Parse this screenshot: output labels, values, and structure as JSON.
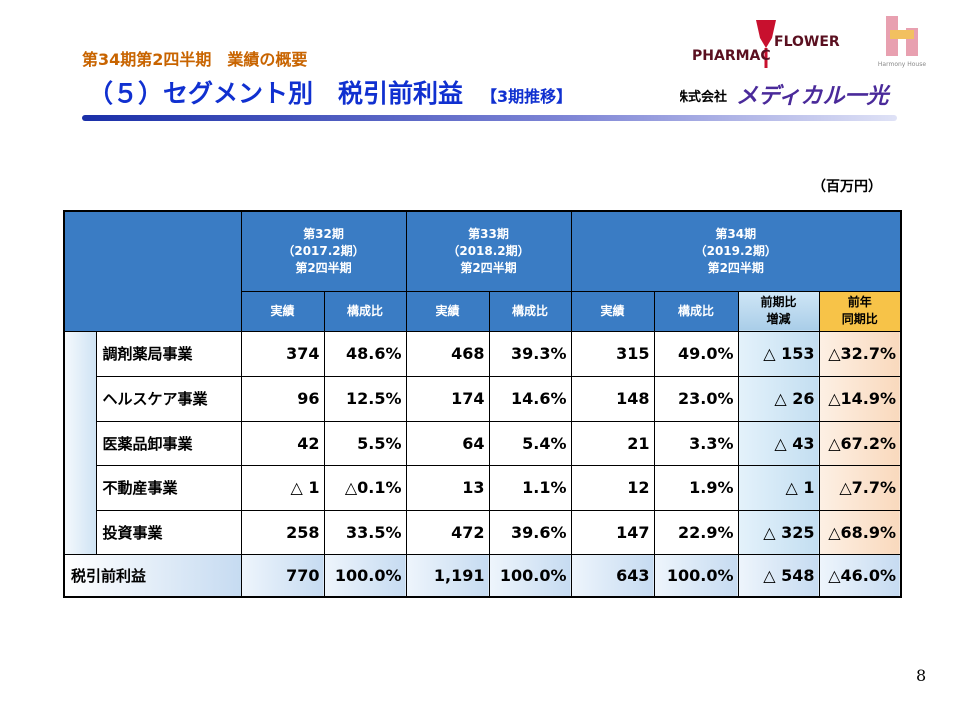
{
  "header": {
    "subtitle": "第34期第2四半期　業績の概要",
    "title": "（５）セグメント別　税引前利益",
    "title_note": "【3期推移】",
    "company_prefix": "株式会社",
    "company_name": "メディカル一光",
    "logo_left": "PHARMAC",
    "logo_right": "FLOWER",
    "logo_house": "Harmony House"
  },
  "unit": "（百万円）",
  "table": {
    "periods": [
      {
        "lines": [
          "第32期",
          "（2017.2期）",
          "第2四半期"
        ],
        "columns": [
          "実績",
          "構成比"
        ]
      },
      {
        "lines": [
          "第33期",
          "（2018.2期）",
          "第2四半期"
        ],
        "columns": [
          "実績",
          "構成比"
        ]
      },
      {
        "lines": [
          "第34期",
          "（2019.2期）",
          "第2四半期"
        ],
        "columns": [
          "実績",
          "構成比",
          [
            "前期比",
            "増減"
          ],
          [
            "前年",
            "同期比"
          ]
        ]
      }
    ],
    "rows": [
      {
        "label": "調剤薬局事業",
        "cells": [
          "374",
          "48.6%",
          "468",
          "39.3%",
          "315",
          "49.0%",
          "△ 153",
          "△32.7%"
        ]
      },
      {
        "label": "ヘルスケア事業",
        "cells": [
          "96",
          "12.5%",
          "174",
          "14.6%",
          "148",
          "23.0%",
          "△ 26",
          "△14.9%"
        ]
      },
      {
        "label": "医薬品卸事業",
        "cells": [
          "42",
          "5.5%",
          "64",
          "5.4%",
          "21",
          "3.3%",
          "△ 43",
          "△67.2%"
        ]
      },
      {
        "label": "不動産事業",
        "cells": [
          "△ 1",
          "△0.1%",
          "13",
          "1.1%",
          "12",
          "1.9%",
          "△ 1",
          "△7.7%"
        ]
      },
      {
        "label": "投資事業",
        "cells": [
          "258",
          "33.5%",
          "472",
          "39.6%",
          "147",
          "22.9%",
          "△ 325",
          "△68.9%"
        ]
      }
    ],
    "total": {
      "label": "税引前利益",
      "cells": [
        "770",
        "100.0%",
        "1,191",
        "100.0%",
        "643",
        "100.0%",
        "△ 548",
        "△46.0%"
      ]
    }
  },
  "page_number": "8"
}
